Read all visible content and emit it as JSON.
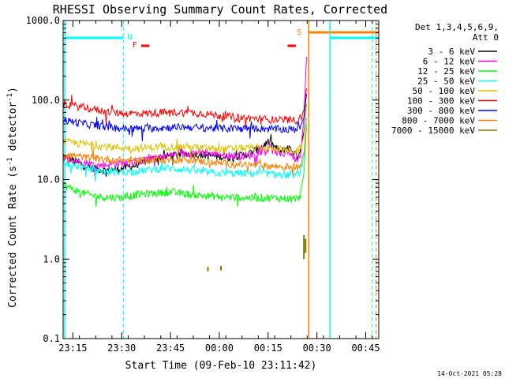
{
  "chart_data": {
    "type": "line",
    "title": "RHESSI Observing Summary Count Rates, Corrected",
    "xlabel": "Start Time (09-Feb-10 23:11:42)",
    "ylabel": "Corrected Count Rate (s",
    "ylabel_unit": "detector",
    "ylabel_exp": "-1",
    "yscale": "log",
    "ylim": [
      0.1,
      1000
    ],
    "xlim_minutes": [
      -3,
      94
    ],
    "y_ticks": [
      {
        "value": 0.1,
        "label": "0.1"
      },
      {
        "value": 1,
        "label": "1.0"
      },
      {
        "value": 10,
        "label": "10.0"
      },
      {
        "value": 100,
        "label": "100.0"
      },
      {
        "value": 1000,
        "label": "1000.0"
      }
    ],
    "x_ticks": [
      {
        "t": 0,
        "label": "23:15"
      },
      {
        "t": 15,
        "label": "23:30"
      },
      {
        "t": 30,
        "label": "23:45"
      },
      {
        "t": 45,
        "label": "00:00"
      },
      {
        "t": 60,
        "label": "00:15"
      },
      {
        "t": 75,
        "label": "00:30"
      },
      {
        "t": 90,
        "label": "00:45"
      }
    ],
    "legend_header": [
      "Det 1,3,4,5,6,9,",
      "Att 0"
    ],
    "legend_position": "top-right",
    "series": [
      {
        "name": "3 - 6 keV",
        "color": "#000000",
        "values": [
          [
            -3,
            20
          ],
          [
            2,
            16
          ],
          [
            6,
            14
          ],
          [
            10,
            13
          ],
          [
            14,
            13.5
          ],
          [
            19,
            15
          ],
          [
            24,
            18
          ],
          [
            30,
            20
          ],
          [
            36,
            21
          ],
          [
            42,
            20
          ],
          [
            48,
            19
          ],
          [
            54,
            21
          ],
          [
            58,
            26
          ],
          [
            60,
            30
          ],
          [
            62,
            26
          ],
          [
            64,
            22
          ],
          [
            66,
            26
          ],
          [
            68,
            22
          ],
          [
            69,
            20
          ],
          [
            70,
            24
          ],
          [
            71,
            40
          ],
          [
            71.8,
            90
          ]
        ]
      },
      {
        "name": "6 - 12 keV",
        "color": "#ff00ff",
        "values": [
          [
            -3,
            18
          ],
          [
            2,
            17
          ],
          [
            8,
            15
          ],
          [
            14,
            16
          ],
          [
            20,
            17
          ],
          [
            26,
            19
          ],
          [
            32,
            21
          ],
          [
            38,
            22
          ],
          [
            44,
            21
          ],
          [
            50,
            20
          ],
          [
            54,
            20
          ],
          [
            57,
            22
          ],
          [
            60,
            24
          ],
          [
            62,
            23
          ],
          [
            64,
            20
          ],
          [
            66,
            23
          ],
          [
            68,
            19
          ],
          [
            69,
            18
          ],
          [
            70,
            22
          ],
          [
            71,
            60
          ],
          [
            71.8,
            350
          ]
        ]
      },
      {
        "name": "12 - 25 keV",
        "color": "#00ff00",
        "values": [
          [
            -3,
            8.5
          ],
          [
            2,
            7
          ],
          [
            6,
            6.3
          ],
          [
            10,
            6
          ],
          [
            16,
            6
          ],
          [
            20,
            6.5
          ],
          [
            26,
            6.8
          ],
          [
            30,
            7
          ],
          [
            36,
            6.5
          ],
          [
            42,
            6.2
          ],
          [
            48,
            6
          ],
          [
            54,
            5.9
          ],
          [
            60,
            5.9
          ],
          [
            66,
            5.8
          ],
          [
            68,
            5.8
          ],
          [
            69,
            5.8
          ],
          [
            70,
            6.5
          ],
          [
            71,
            12
          ],
          [
            71.8,
            50
          ]
        ]
      },
      {
        "name": "25 - 50 keV",
        "color": "#00ffff",
        "values": [
          [
            -3,
            16
          ],
          [
            4,
            14
          ],
          [
            10,
            12.5
          ],
          [
            16,
            12.5
          ],
          [
            22,
            13
          ],
          [
            28,
            14
          ],
          [
            34,
            13.5
          ],
          [
            40,
            12.5
          ],
          [
            46,
            12
          ],
          [
            52,
            12
          ],
          [
            58,
            12
          ],
          [
            64,
            11.5
          ],
          [
            68,
            11.5
          ],
          [
            69,
            11.5
          ],
          [
            70,
            13
          ],
          [
            71,
            20
          ],
          [
            71.8,
            60
          ]
        ]
      },
      {
        "name": "50 - 100 keV",
        "color": "#e0c000",
        "values": [
          [
            -3,
            30
          ],
          [
            4,
            28
          ],
          [
            10,
            26
          ],
          [
            16,
            25
          ],
          [
            22,
            25
          ],
          [
            28,
            26
          ],
          [
            34,
            26
          ],
          [
            40,
            25
          ],
          [
            46,
            24
          ],
          [
            52,
            25
          ],
          [
            58,
            25
          ],
          [
            64,
            24
          ],
          [
            68,
            23
          ],
          [
            69,
            23
          ],
          [
            70,
            25
          ],
          [
            71,
            35
          ],
          [
            71.8,
            90
          ]
        ]
      },
      {
        "name": "100 - 300 keV",
        "color": "#ff0000",
        "values": [
          [
            -3,
            90
          ],
          [
            4,
            80
          ],
          [
            10,
            72
          ],
          [
            16,
            68
          ],
          [
            22,
            68
          ],
          [
            28,
            70
          ],
          [
            34,
            70
          ],
          [
            40,
            68
          ],
          [
            46,
            63
          ],
          [
            52,
            60
          ],
          [
            58,
            58
          ],
          [
            64,
            56
          ],
          [
            68,
            56
          ],
          [
            69,
            56
          ],
          [
            70,
            60
          ],
          [
            71,
            75
          ],
          [
            71.8,
            140
          ]
        ]
      },
      {
        "name": "300 - 800 keV",
        "color": "#0000ff",
        "values": [
          [
            -3,
            56
          ],
          [
            4,
            50
          ],
          [
            10,
            46
          ],
          [
            16,
            44
          ],
          [
            22,
            44
          ],
          [
            28,
            45
          ],
          [
            34,
            46
          ],
          [
            40,
            45
          ],
          [
            46,
            44
          ],
          [
            52,
            44
          ],
          [
            58,
            44
          ],
          [
            64,
            43
          ],
          [
            68,
            43
          ],
          [
            69,
            44
          ],
          [
            70,
            48
          ],
          [
            71,
            60
          ],
          [
            71.8,
            120
          ]
        ]
      },
      {
        "name": "800 - 7000 keV",
        "color": "#ff8000",
        "values": [
          [
            -3,
            21
          ],
          [
            4,
            19
          ],
          [
            10,
            18
          ],
          [
            16,
            17.5
          ],
          [
            22,
            17.5
          ],
          [
            28,
            17.5
          ],
          [
            34,
            18
          ],
          [
            40,
            17
          ],
          [
            46,
            16
          ],
          [
            52,
            15.5
          ],
          [
            58,
            15
          ],
          [
            64,
            14.5
          ],
          [
            68,
            14.5
          ],
          [
            69,
            14.5
          ],
          [
            70,
            16
          ],
          [
            71,
            22
          ],
          [
            71.8,
            45
          ]
        ]
      },
      {
        "name": "7000 - 15000 keV",
        "color": "#808000",
        "values": [
          [
            41.5,
            0.7
          ],
          [
            41.5,
            0.8
          ],
          [
            45.5,
            0.72
          ],
          [
            45.5,
            0.82
          ],
          [
            71,
            1.0
          ],
          [
            71,
            2.0
          ],
          [
            71.5,
            1.5
          ]
        ]
      }
    ],
    "annotations": [
      {
        "label": "N",
        "color": "#00ffff",
        "t": 17.5
      },
      {
        "label": "F",
        "color": "#ff0000",
        "t": 19
      },
      {
        "label": "S",
        "color": "#ff8000",
        "t": 69.5
      }
    ],
    "timestamp": "14-Oct-2021 05:28"
  }
}
